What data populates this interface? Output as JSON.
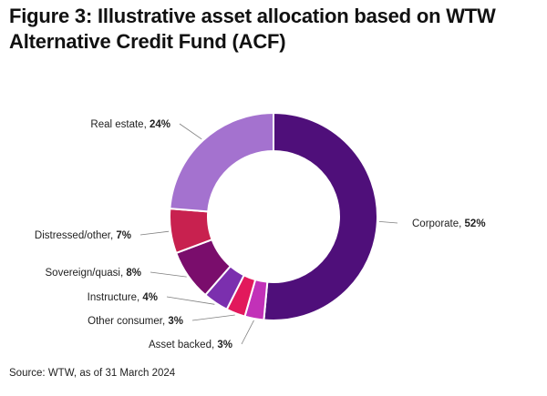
{
  "title": {
    "line1": "Figure 3: Illustrative asset allocation based on WTW",
    "line2": "Alternative Credit Fund (ACF)"
  },
  "source": "Source: WTW, as of 31 March 2024",
  "chart_data": {
    "type": "pie",
    "variant": "donut",
    "start": "12 o'clock",
    "direction": "clockwise",
    "slices": [
      {
        "name": "Corporate",
        "value": 52,
        "label": "52%",
        "color": "#4f0f7a"
      },
      {
        "name": "Asset backed",
        "value": 3,
        "label": "3%",
        "color": "#c231b8"
      },
      {
        "name": "Other consumer",
        "value": 3,
        "label": "3%",
        "color": "#e2195c"
      },
      {
        "name": "Instructure",
        "value": 4,
        "label": "4%",
        "color": "#7b2fae"
      },
      {
        "name": "Sovereign/quasi",
        "value": 8,
        "label": "8%",
        "color": "#7a0d6c"
      },
      {
        "name": "Distressed/other",
        "value": 7,
        "label": "7%",
        "color": "#c8214f"
      },
      {
        "name": "Real estate",
        "value": 24,
        "label": "24%",
        "color": "#a472cf"
      }
    ]
  }
}
